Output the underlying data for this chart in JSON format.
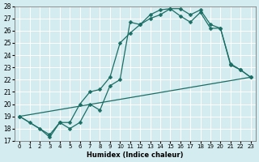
{
  "xlabel": "Humidex (Indice chaleur)",
  "xlim": [
    -0.5,
    23.5
  ],
  "ylim": [
    17,
    28
  ],
  "yticks": [
    17,
    18,
    19,
    20,
    21,
    22,
    23,
    24,
    25,
    26,
    27,
    28
  ],
  "xticks": [
    0,
    1,
    2,
    3,
    4,
    5,
    6,
    7,
    8,
    9,
    10,
    11,
    12,
    13,
    14,
    15,
    16,
    17,
    18,
    19,
    20,
    21,
    22,
    23
  ],
  "bg_color": "#d4ecf0",
  "grid_color": "#b8d8dc",
  "line_color": "#1a6e64",
  "line1_x": [
    0,
    1,
    2,
    3,
    4,
    5,
    6,
    7,
    8,
    9,
    10,
    11,
    12,
    13,
    14,
    15,
    16,
    17,
    18,
    19,
    20,
    21,
    22,
    23
  ],
  "line1_y": [
    19.0,
    18.5,
    18.0,
    17.3,
    18.5,
    18.0,
    18.5,
    20.0,
    19.5,
    21.5,
    22.0,
    26.7,
    26.5,
    27.3,
    27.7,
    27.8,
    27.8,
    27.3,
    27.7,
    26.5,
    26.2,
    23.2,
    22.8,
    22.2
  ],
  "line2_x": [
    0,
    3,
    4,
    5,
    6,
    7,
    8,
    9,
    10,
    11,
    12,
    13,
    14,
    15,
    16,
    17,
    18,
    19,
    20,
    21,
    22,
    23
  ],
  "line2_y": [
    19.0,
    17.5,
    18.5,
    18.5,
    20.0,
    21.0,
    21.2,
    22.2,
    25.0,
    25.8,
    26.5,
    27.0,
    27.3,
    27.8,
    27.2,
    26.7,
    27.5,
    26.2,
    26.2,
    23.3,
    22.8,
    22.2
  ],
  "line3_x": [
    0,
    23
  ],
  "line3_y": [
    19.0,
    22.2
  ],
  "marker": "D",
  "markersize": 2.5,
  "linewidth": 0.9
}
